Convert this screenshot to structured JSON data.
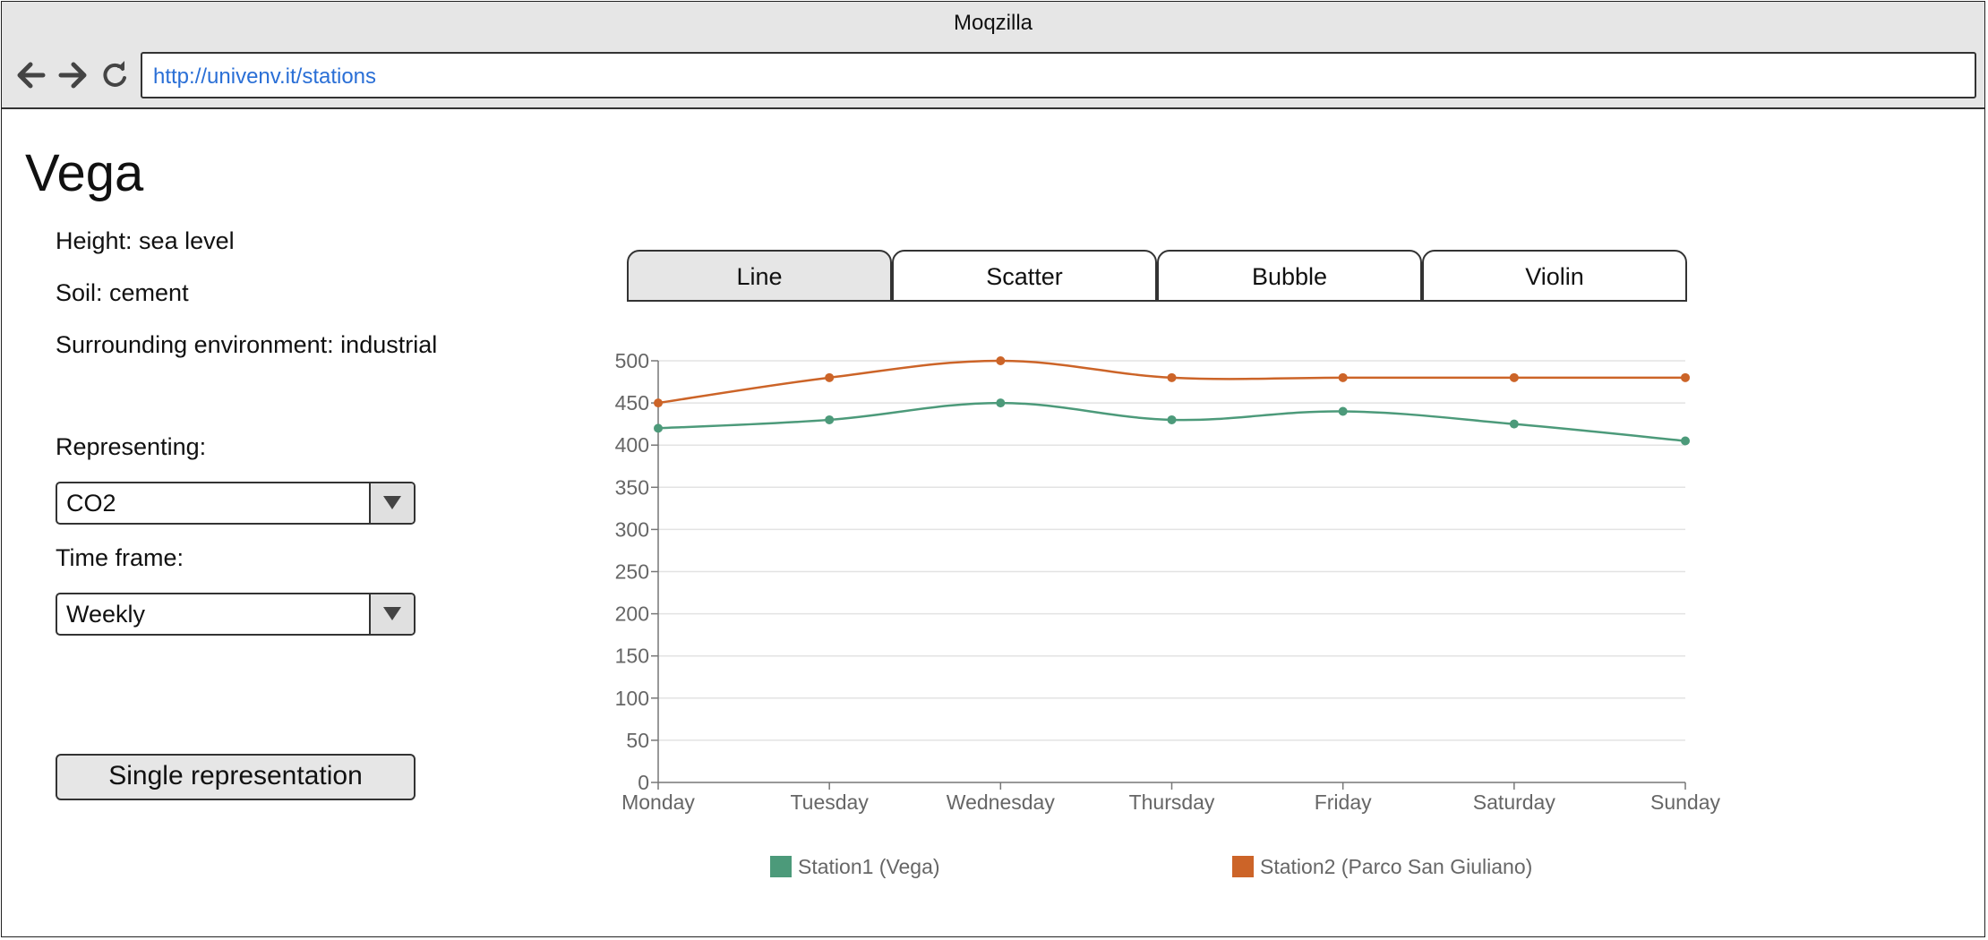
{
  "window": {
    "title": "Moqzilla"
  },
  "browser": {
    "url": "http://univenv.it/stations"
  },
  "page": {
    "title": "Vega",
    "info": [
      "Height: sea level",
      "Soil: cement",
      "Surrounding environment: industrial"
    ],
    "representing_label": "Representing:",
    "representing_value": "CO2",
    "timeframe_label": "Time frame:",
    "timeframe_value": "Weekly",
    "single_button": "Single representation"
  },
  "tabs": [
    {
      "label": "Line",
      "active": true
    },
    {
      "label": "Scatter",
      "active": false
    },
    {
      "label": "Bubble",
      "active": false
    },
    {
      "label": "Violin",
      "active": false
    }
  ],
  "chart_data": {
    "type": "line",
    "categories": [
      "Monday",
      "Tuesday",
      "Wednesday",
      "Thursday",
      "Friday",
      "Saturday",
      "Sunday"
    ],
    "ylim": [
      0,
      500
    ],
    "yticks": [
      0,
      50,
      100,
      150,
      200,
      250,
      300,
      350,
      400,
      450,
      500
    ],
    "grid": true,
    "legend_position": "bottom",
    "series": [
      {
        "name": "Station1 (Vega)",
        "color": "#4c9a7a",
        "values": [
          420,
          430,
          450,
          430,
          440,
          425,
          405
        ]
      },
      {
        "name": "Station2 (Parco San Giuliano)",
        "color": "#cc6428",
        "values": [
          450,
          480,
          500,
          480,
          480,
          480,
          480
        ]
      }
    ]
  }
}
